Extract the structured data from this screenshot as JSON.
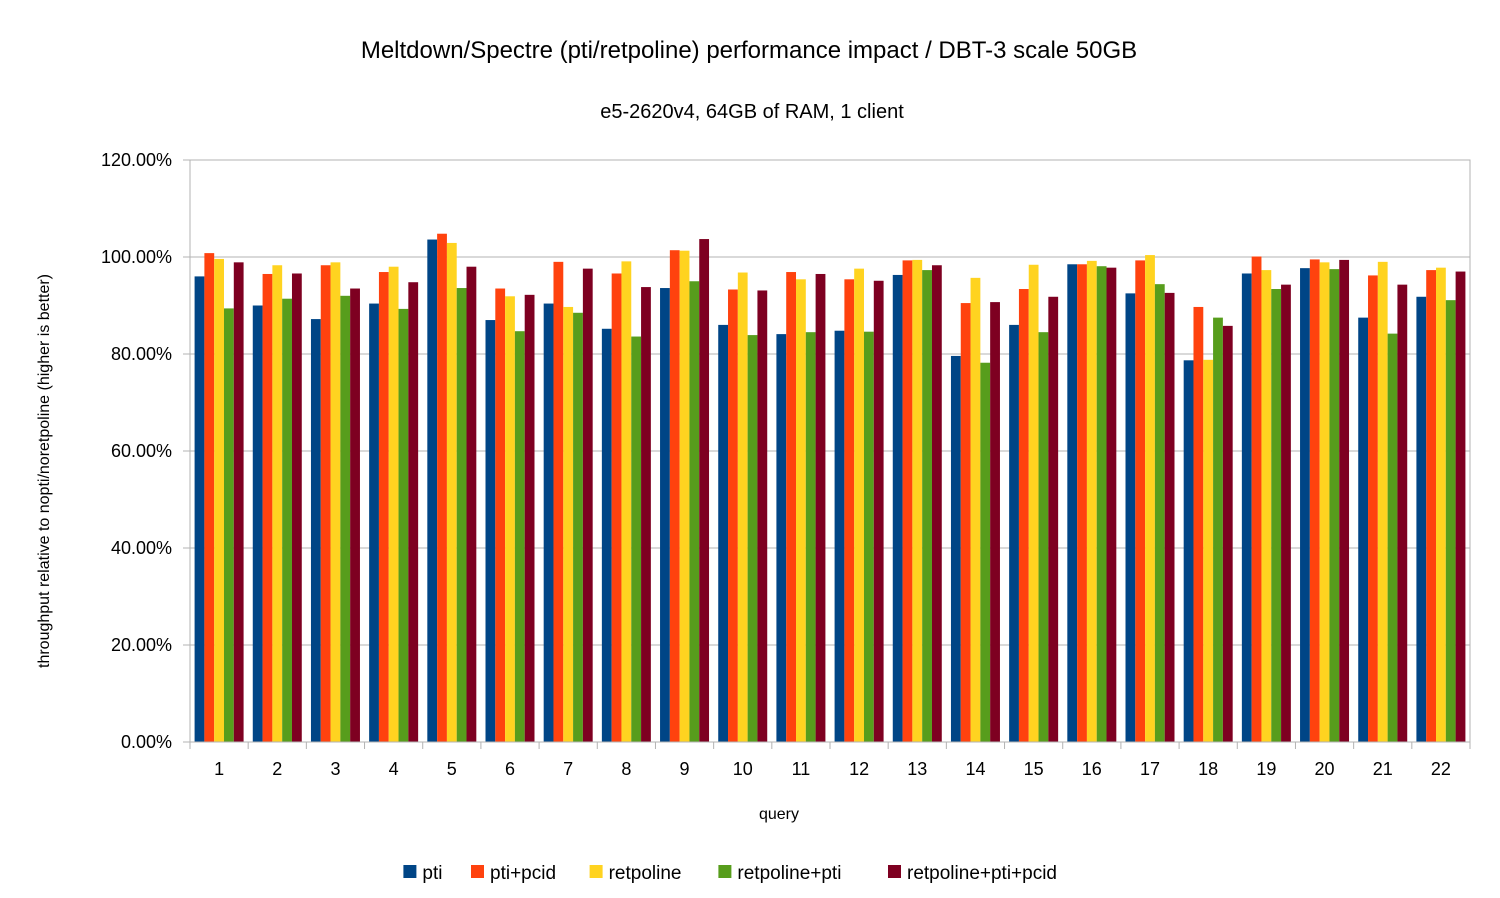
{
  "chart_data": {
    "type": "bar",
    "title": "Meltdown/Spectre (pti/retpoline) performance impact / DBT-3 scale 50GB",
    "subtitle": "e5-2620v4, 64GB of RAM, 1 client",
    "xlabel": "query",
    "ylabel": "throughput relative to nopti/noretpoline (higher is better)",
    "ylim": [
      0,
      1.2
    ],
    "ytick_labels": [
      "0.00%",
      "20.00%",
      "40.00%",
      "60.00%",
      "80.00%",
      "100.00%",
      "120.00%"
    ],
    "grid": true,
    "legend_position": "bottom",
    "categories": [
      "1",
      "2",
      "3",
      "4",
      "5",
      "6",
      "7",
      "8",
      "9",
      "10",
      "11",
      "12",
      "13",
      "14",
      "15",
      "16",
      "17",
      "18",
      "19",
      "20",
      "21",
      "22"
    ],
    "series": [
      {
        "name": "pti",
        "color": "#004586",
        "values": [
          0.96,
          0.9,
          0.872,
          0.904,
          1.036,
          0.87,
          0.904,
          0.852,
          0.936,
          0.86,
          0.841,
          0.848,
          0.963,
          0.796,
          0.86,
          0.985,
          0.925,
          0.787,
          0.966,
          0.977,
          0.875,
          0.918
        ]
      },
      {
        "name": "pti+pcid",
        "color": "#ff420e",
        "values": [
          1.008,
          0.965,
          0.983,
          0.969,
          1.048,
          0.935,
          0.99,
          0.966,
          1.014,
          0.933,
          0.969,
          0.954,
          0.993,
          0.905,
          0.934,
          0.985,
          0.993,
          0.897,
          1.001,
          0.995,
          0.962,
          0.973
        ]
      },
      {
        "name": "retpoline",
        "color": "#ffd320",
        "values": [
          0.996,
          0.983,
          0.989,
          0.98,
          1.029,
          0.919,
          0.897,
          0.991,
          1.013,
          0.968,
          0.954,
          0.976,
          0.994,
          0.957,
          0.984,
          0.992,
          1.004,
          0.788,
          0.973,
          0.989,
          0.99,
          0.978
        ]
      },
      {
        "name": "retpoline+pti",
        "color": "#579d1c",
        "values": [
          0.894,
          0.914,
          0.92,
          0.893,
          0.936,
          0.847,
          0.885,
          0.836,
          0.95,
          0.839,
          0.845,
          0.846,
          0.973,
          0.782,
          0.845,
          0.981,
          0.944,
          0.875,
          0.934,
          0.975,
          0.842,
          0.911
        ]
      },
      {
        "name": "retpoline+pti+pcid",
        "color": "#7e0021",
        "values": [
          0.989,
          0.966,
          0.935,
          0.948,
          0.98,
          0.922,
          0.976,
          0.938,
          1.037,
          0.931,
          0.965,
          0.951,
          0.983,
          0.907,
          0.918,
          0.978,
          0.926,
          0.858,
          0.943,
          0.994,
          0.943,
          0.97
        ]
      }
    ]
  }
}
